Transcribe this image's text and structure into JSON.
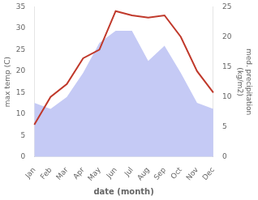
{
  "chart_data": {
    "type": "line",
    "categories": [
      "Jan",
      "Feb",
      "Mar",
      "Apr",
      "May",
      "Jun",
      "Jul",
      "Aug",
      "Sep",
      "Oct",
      "Nov",
      "Dec"
    ],
    "series": [
      {
        "type": "area",
        "axis": "y2",
        "color": "#c5caf5",
        "values": [
          9.0,
          8.0,
          10.0,
          14.0,
          19.0,
          21.0,
          21.0,
          16.0,
          18.5,
          14.0,
          9.0,
          8.0
        ]
      },
      {
        "type": "line",
        "color": "#c0392b",
        "values": [
          7.5,
          14.0,
          17.0,
          23.0,
          25.0,
          34.0,
          33.0,
          32.5,
          33.0,
          28.0,
          20.0,
          15.0
        ]
      }
    ],
    "xlabel": "date (month)",
    "ylabel": "max temp (C)",
    "y2label": "med. precipitation\n(kg/m2)",
    "ylim": [
      0,
      35
    ],
    "yticks": [
      0,
      5,
      10,
      15,
      20,
      25,
      30,
      35
    ],
    "y2lim": [
      0,
      25
    ],
    "y2ticks": [
      0,
      5,
      10,
      15,
      20,
      25
    ],
    "grid": false
  }
}
